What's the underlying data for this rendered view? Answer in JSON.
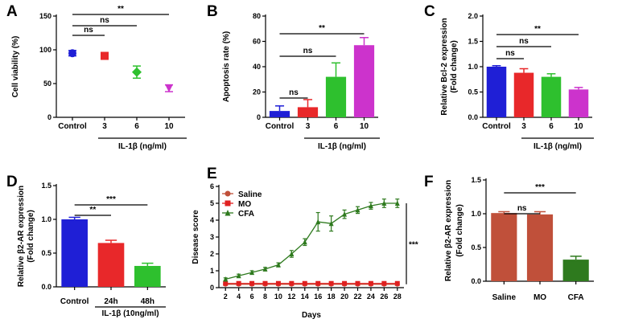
{
  "chart_data": [
    {
      "id": "A",
      "panel_label": "A",
      "type": "scatter",
      "ylabel": "Cell viability (%)",
      "xlabel": "IL-1β (ng/ml)",
      "categories": [
        "Control",
        "3",
        "6",
        "10"
      ],
      "values": [
        95,
        91,
        67,
        43
      ],
      "errors": [
        4,
        5,
        9,
        5
      ],
      "colors": [
        "#1f1fd6",
        "#e8282a",
        "#2ec02e",
        "#cc33cc"
      ],
      "markers": [
        "circle",
        "square",
        "diamond",
        "triangle-down"
      ],
      "ylim": [
        0,
        150
      ],
      "yticks": [
        "0",
        "50",
        "100",
        "150"
      ],
      "significance": [
        {
          "from": 0,
          "to": 1,
          "label": "ns"
        },
        {
          "from": 0,
          "to": 2,
          "label": "ns"
        },
        {
          "from": 0,
          "to": 3,
          "label": "**"
        }
      ]
    },
    {
      "id": "B",
      "panel_label": "B",
      "type": "bar",
      "ylabel": "Apoptosis rate (%)",
      "xlabel": "IL-1β (ng/ml)",
      "categories": [
        "Control",
        "3",
        "6",
        "10"
      ],
      "values": [
        5,
        8,
        32,
        57
      ],
      "errors": [
        4,
        6,
        11,
        6
      ],
      "colors": [
        "#1f1fd6",
        "#e8282a",
        "#2ec02e",
        "#cc33cc"
      ],
      "ylim": [
        0,
        80
      ],
      "yticks": [
        "0",
        "20",
        "40",
        "60",
        "80"
      ],
      "significance": [
        {
          "from": 0,
          "to": 1,
          "label": "ns"
        },
        {
          "from": 0,
          "to": 2,
          "label": "ns"
        },
        {
          "from": 0,
          "to": 3,
          "label": "**"
        }
      ]
    },
    {
      "id": "C",
      "panel_label": "C",
      "type": "bar",
      "ylabel": "Relative Bcl-2 expression",
      "ylabel2": "(Fold change)",
      "xlabel": "IL-1β (ng/ml)",
      "categories": [
        "Control",
        "3",
        "6",
        "10"
      ],
      "values": [
        1.0,
        0.88,
        0.8,
        0.55
      ],
      "errors": [
        0.02,
        0.08,
        0.06,
        0.04
      ],
      "colors": [
        "#1f1fd6",
        "#e8282a",
        "#2ec02e",
        "#cc33cc"
      ],
      "ylim": [
        0,
        2.0
      ],
      "yticks": [
        "0.0",
        "0.5",
        "1.0",
        "1.5",
        "2.0"
      ],
      "significance": [
        {
          "from": 0,
          "to": 1,
          "label": "ns"
        },
        {
          "from": 0,
          "to": 2,
          "label": "ns"
        },
        {
          "from": 0,
          "to": 3,
          "label": "**"
        }
      ]
    },
    {
      "id": "D",
      "panel_label": "D",
      "type": "bar",
      "ylabel": "Relative β2-AR expression",
      "ylabel2": "(Fold change)",
      "xlabel": "IL-1β (10ng/ml)",
      "categories": [
        "Control",
        "24h",
        "48h"
      ],
      "values": [
        1.0,
        0.65,
        0.31
      ],
      "errors": [
        0.03,
        0.04,
        0.04
      ],
      "colors": [
        "#1f1fd6",
        "#e8282a",
        "#2ec02e"
      ],
      "ylim": [
        0,
        1.5
      ],
      "yticks": [
        "0.0",
        "0.5",
        "1.0",
        "1.5"
      ],
      "significance": [
        {
          "from": 0,
          "to": 1,
          "label": "**"
        },
        {
          "from": 0,
          "to": 2,
          "label": "***"
        }
      ]
    },
    {
      "id": "E",
      "panel_label": "E",
      "type": "line",
      "ylabel": "Disease score",
      "xlabel": "Days",
      "x": [
        2,
        4,
        6,
        8,
        10,
        12,
        14,
        16,
        18,
        20,
        22,
        24,
        26,
        28
      ],
      "xticks": [
        "2",
        "4",
        "6",
        "8",
        "10",
        "12",
        "14",
        "16",
        "18",
        "20",
        "22",
        "24",
        "26",
        "28"
      ],
      "ylim": [
        0,
        6
      ],
      "yticks": [
        "0",
        "1",
        "2",
        "3",
        "4",
        "5",
        "6"
      ],
      "series": [
        {
          "name": "Saline",
          "color": "#c0503a",
          "marker": "circle",
          "values": [
            0.2,
            0.2,
            0.2,
            0.2,
            0.2,
            0.2,
            0.2,
            0.2,
            0.2,
            0.2,
            0.2,
            0.2,
            0.2,
            0.2
          ],
          "errors": [
            0,
            0,
            0,
            0,
            0,
            0,
            0,
            0,
            0,
            0,
            0,
            0,
            0,
            0
          ]
        },
        {
          "name": "MO",
          "color": "#e02020",
          "marker": "square",
          "values": [
            0.25,
            0.25,
            0.25,
            0.25,
            0.25,
            0.25,
            0.25,
            0.25,
            0.25,
            0.25,
            0.25,
            0.25,
            0.25,
            0.25
          ],
          "errors": [
            0,
            0,
            0,
            0,
            0,
            0,
            0,
            0,
            0,
            0,
            0,
            0,
            0,
            0
          ]
        },
        {
          "name": "CFA",
          "color": "#2e7a1e",
          "marker": "triangle",
          "values": [
            0.5,
            0.7,
            0.9,
            1.1,
            1.35,
            2.0,
            2.7,
            3.9,
            3.8,
            4.35,
            4.6,
            4.85,
            5.0,
            5.0
          ],
          "errors": [
            0.08,
            0.1,
            0.1,
            0.1,
            0.12,
            0.2,
            0.2,
            0.55,
            0.45,
            0.25,
            0.2,
            0.2,
            0.25,
            0.25
          ]
        }
      ],
      "significance_label": "***"
    },
    {
      "id": "F",
      "panel_label": "F",
      "type": "bar",
      "ylabel": "Relative β2-AR expression",
      "ylabel2": "(Fold change)",
      "xlabel": "",
      "categories": [
        "Saline",
        "MO",
        "CFA"
      ],
      "values": [
        1.01,
        0.99,
        0.32
      ],
      "errors": [
        0.02,
        0.04,
        0.05
      ],
      "colors": [
        "#c0503a",
        "#c0503a",
        "#2e7a1e"
      ],
      "ylim": [
        0,
        1.5
      ],
      "yticks": [
        "0.0",
        "0.5",
        "1.0",
        "1.5"
      ],
      "significance": [
        {
          "from": 0,
          "to": 1,
          "label": "ns"
        },
        {
          "from": 0,
          "to": 2,
          "label": "***"
        }
      ]
    }
  ]
}
